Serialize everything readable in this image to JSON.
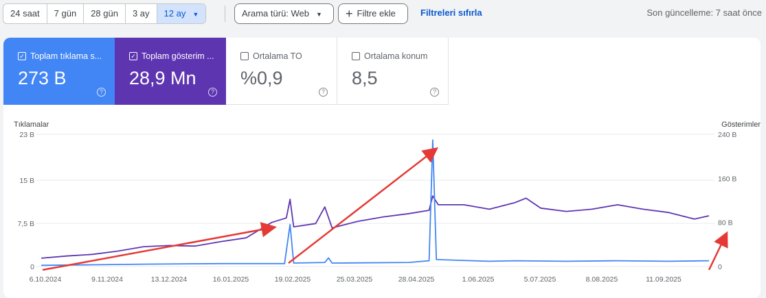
{
  "toolbar": {
    "ranges": [
      "24 saat",
      "7 gün",
      "28 gün",
      "3 ay",
      "12 ay"
    ],
    "selected_range": "12 ay",
    "search_type": "Arama türü: Web",
    "add_filter": "Filtre ekle",
    "reset_filters": "Filtreleri sıfırla",
    "last_updated": "Son güncelleme: 7 saat önce"
  },
  "metrics": [
    {
      "label": "Toplam tıklama s...",
      "value": "273 B",
      "checked": true,
      "color": "#4285f4"
    },
    {
      "label": "Toplam gösterim ...",
      "value": "28,9 Mn",
      "checked": true,
      "color": "#5e35b1"
    },
    {
      "label": "Ortalama TO",
      "value": "%0,9",
      "checked": false
    },
    {
      "label": "Ortalama konum",
      "value": "8,5",
      "checked": false
    }
  ],
  "chart_data": {
    "type": "line",
    "left_axis_title": "Tıklamalar",
    "right_axis_title": "Gösterimler",
    "left_ticks": [
      "23 B",
      "15 B",
      "7,5 B",
      "0"
    ],
    "left_tick_values": [
      23000,
      15000,
      7500,
      0
    ],
    "right_ticks": [
      "240 B",
      "160 B",
      "80 B",
      "0"
    ],
    "right_tick_values": [
      240000,
      160000,
      80000,
      0
    ],
    "left_ylim": [
      0,
      23000
    ],
    "right_ylim": [
      0,
      240000
    ],
    "x_ticks": [
      "6.10.2024",
      "9.11.2024",
      "13.12.2024",
      "16.01.2025",
      "19.02.2025",
      "25.03.2025",
      "28.04.2025",
      "1.06.2025",
      "5.07.2025",
      "8.08.2025",
      "11.09.2025"
    ],
    "x_range_dates": [
      "2024-10-06",
      "2025-10-06"
    ],
    "grid": true,
    "series": [
      {
        "name": "Toplam gösterim",
        "axis": "right",
        "color": "#5e35b1",
        "points": [
          [
            "2024-10-06",
            15000
          ],
          [
            "2024-10-20",
            19000
          ],
          [
            "2024-11-03",
            22000
          ],
          [
            "2024-11-17",
            28000
          ],
          [
            "2024-12-01",
            36000
          ],
          [
            "2024-12-15",
            38000
          ],
          [
            "2024-12-29",
            37000
          ],
          [
            "2025-01-12",
            45000
          ],
          [
            "2025-01-26",
            52000
          ],
          [
            "2025-02-09",
            80000
          ],
          [
            "2025-02-17",
            88000
          ],
          [
            "2025-02-19",
            122000
          ],
          [
            "2025-02-21",
            72000
          ],
          [
            "2025-03-05",
            78000
          ],
          [
            "2025-03-10",
            108000
          ],
          [
            "2025-03-14",
            70000
          ],
          [
            "2025-03-28",
            82000
          ],
          [
            "2025-04-11",
            90000
          ],
          [
            "2025-04-25",
            96000
          ],
          [
            "2025-05-06",
            102000
          ],
          [
            "2025-05-08",
            128000
          ],
          [
            "2025-05-11",
            112000
          ],
          [
            "2025-05-25",
            112000
          ],
          [
            "2025-06-08",
            104000
          ],
          [
            "2025-06-22",
            116000
          ],
          [
            "2025-06-28",
            124000
          ],
          [
            "2025-07-06",
            106000
          ],
          [
            "2025-07-20",
            100000
          ],
          [
            "2025-08-03",
            104000
          ],
          [
            "2025-08-17",
            112000
          ],
          [
            "2025-08-31",
            104000
          ],
          [
            "2025-09-14",
            98000
          ],
          [
            "2025-09-28",
            86000
          ],
          [
            "2025-10-06",
            92000
          ]
        ]
      },
      {
        "name": "Toplam tıklama",
        "axis": "left",
        "color": "#4285f4",
        "points": [
          [
            "2024-10-06",
            200
          ],
          [
            "2024-11-03",
            300
          ],
          [
            "2024-12-01",
            400
          ],
          [
            "2025-01-12",
            500
          ],
          [
            "2025-02-16",
            500
          ],
          [
            "2025-02-19",
            7300
          ],
          [
            "2025-02-21",
            600
          ],
          [
            "2025-03-10",
            700
          ],
          [
            "2025-03-12",
            1500
          ],
          [
            "2025-03-14",
            600
          ],
          [
            "2025-04-25",
            700
          ],
          [
            "2025-05-06",
            1000
          ],
          [
            "2025-05-08",
            22000
          ],
          [
            "2025-05-10",
            1200
          ],
          [
            "2025-06-08",
            900
          ],
          [
            "2025-06-22",
            1000
          ],
          [
            "2025-07-20",
            900
          ],
          [
            "2025-08-17",
            1000
          ],
          [
            "2025-09-14",
            900
          ],
          [
            "2025-10-06",
            1000
          ]
        ]
      }
    ],
    "annotations": "red trend arrows"
  }
}
